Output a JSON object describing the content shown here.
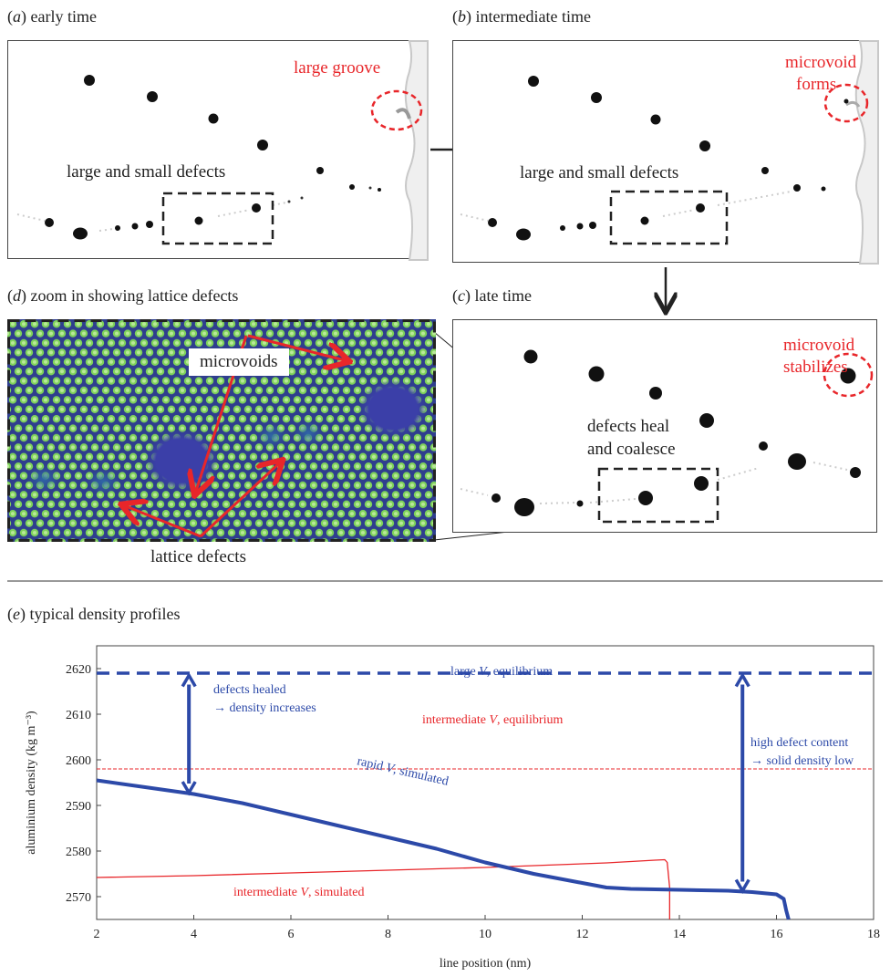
{
  "panels": {
    "a": {
      "letter": "a",
      "title": "early time",
      "red_label": "large groove",
      "defects_label": "large and small defects"
    },
    "b": {
      "letter": "b",
      "title": "intermediate time",
      "red_label_1": "microvoid",
      "red_label_2": "forms",
      "defects_label": "large and small defects"
    },
    "c": {
      "letter": "c",
      "title": "late time",
      "red_label_1": "microvoid",
      "red_label_2": "stabilizes",
      "defects_label_1": "defects heal",
      "defects_label_2": "and coalesce"
    },
    "d": {
      "letter": "d",
      "title": "zoom in showing lattice defects",
      "microvoids_label": "microvoids",
      "lattice_label": "lattice defects"
    },
    "e": {
      "letter": "e",
      "title": "typical density profiles"
    }
  },
  "chart_data": {
    "type": "line",
    "xlabel": "line position (nm)",
    "ylabel": "aluminium density (kg m⁻³)",
    "xlim": [
      2,
      18
    ],
    "ylim": [
      2565,
      2625
    ],
    "xticks": [
      "2",
      "4",
      "6",
      "8",
      "10",
      "12",
      "14",
      "16",
      "18"
    ],
    "yticks": [
      "2570",
      "2580",
      "2590",
      "2600",
      "2610",
      "2620"
    ],
    "series": [
      {
        "name": "large V, equilibrium",
        "color": "#2c49a8",
        "style": "dashed",
        "x": [
          2,
          18
        ],
        "y": [
          2619,
          2619
        ]
      },
      {
        "name": "intermediate V, equilibrium",
        "color": "#e8262a",
        "style": "dashed-thin",
        "x": [
          2,
          18
        ],
        "y": [
          2598,
          2598
        ]
      },
      {
        "name": "rapid V, simulated",
        "color": "#2c49a8",
        "style": "solid-thick",
        "x": [
          2,
          3,
          4,
          5,
          6,
          7,
          8,
          9,
          10,
          11,
          12,
          12.5,
          13,
          14,
          15,
          15.5,
          16,
          16.15,
          16.2,
          16.25
        ],
        "y": [
          2595.5,
          2594,
          2592.5,
          2590.5,
          2588,
          2585.5,
          2583,
          2580.5,
          2577.5,
          2575,
          2573,
          2572,
          2571.7,
          2571.5,
          2571.3,
          2571,
          2570.5,
          2569.5,
          2567,
          2565
        ]
      },
      {
        "name": "intermediate V, simulated",
        "color": "#e8262a",
        "style": "solid-thin",
        "x": [
          2,
          4,
          6,
          8,
          10,
          11,
          12,
          12.5,
          13,
          13.5,
          13.7,
          13.75,
          13.8,
          13.8
        ],
        "y": [
          2574.2,
          2574.6,
          2575.2,
          2575.8,
          2576.4,
          2576.8,
          2577.2,
          2577.4,
          2577.7,
          2578,
          2578.1,
          2577.5,
          2572,
          2565
        ]
      }
    ],
    "annotations": {
      "healed_1": "defects healed",
      "healed_2": "→ density increases",
      "high_1": "high defect content",
      "high_2": "→ solid density low",
      "large_eq_prefix": "large ",
      "large_eq_v": "V",
      "large_eq_suffix": ", equilibrium",
      "inter_eq_prefix": "intermediate ",
      "inter_eq_v": "V",
      "inter_eq_suffix": ", equilibrium",
      "rapid_prefix": "rapid ",
      "rapid_v": "V",
      "rapid_suffix": ", simulated",
      "inter_sim_prefix": "intermediate ",
      "inter_sim_v": "V",
      "inter_sim_suffix": ", simulated"
    }
  },
  "colors": {
    "red": "#e8262a",
    "blue": "#2c49a8",
    "lattice_bg": "#2f3e8e",
    "lattice_dot": "#7fd35a"
  }
}
